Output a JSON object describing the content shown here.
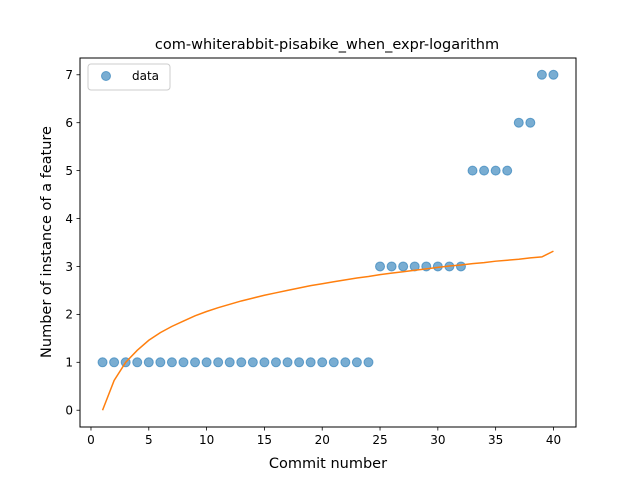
{
  "chart_data": {
    "type": "scatter",
    "title": "com-whiterabbit-pisabike_when_expr-logarithm",
    "xlabel": "Commit number",
    "ylabel": "Number of instance of a feature",
    "xlim": [
      -0.95,
      41.95
    ],
    "ylim": [
      -0.35,
      7.35
    ],
    "xticks": [
      0,
      5,
      10,
      15,
      20,
      25,
      30,
      35,
      40
    ],
    "yticks": [
      0,
      1,
      2,
      3,
      4,
      5,
      6,
      7
    ],
    "grid": false,
    "legend_position": "upper-left",
    "series": [
      {
        "name": "data",
        "kind": "scatter",
        "color": "#1f77b4",
        "x": [
          1,
          2,
          3,
          4,
          5,
          6,
          7,
          8,
          9,
          10,
          11,
          12,
          13,
          14,
          15,
          16,
          17,
          18,
          19,
          20,
          21,
          22,
          23,
          24,
          25,
          26,
          27,
          28,
          29,
          30,
          31,
          32,
          33,
          34,
          35,
          36,
          37,
          38,
          39,
          40
        ],
        "y": [
          1,
          1,
          1,
          1,
          1,
          1,
          1,
          1,
          1,
          1,
          1,
          1,
          1,
          1,
          1,
          1,
          1,
          1,
          1,
          1,
          1,
          1,
          1,
          1,
          3,
          3,
          3,
          3,
          3,
          3,
          3,
          3,
          5,
          5,
          5,
          5,
          6,
          6,
          7,
          7
        ]
      },
      {
        "kind": "fit-line",
        "color": "#ff7f0e",
        "x": [
          1,
          2,
          3,
          4,
          5,
          6,
          7,
          8,
          9,
          10,
          11,
          12,
          13,
          14,
          15,
          16,
          17,
          18,
          19,
          20,
          21,
          22,
          23,
          24,
          25,
          26,
          27,
          28,
          29,
          30,
          31,
          32,
          33,
          34,
          35,
          36,
          37,
          38,
          39,
          40
        ],
        "y": [
          0,
          0.62,
          1.0,
          1.25,
          1.46,
          1.62,
          1.75,
          1.86,
          1.97,
          2.06,
          2.14,
          2.21,
          2.28,
          2.34,
          2.4,
          2.45,
          2.5,
          2.55,
          2.6,
          2.64,
          2.68,
          2.72,
          2.76,
          2.79,
          2.83,
          2.86,
          2.89,
          2.92,
          2.95,
          2.98,
          3.01,
          3.03,
          3.06,
          3.08,
          3.11,
          3.13,
          3.15,
          3.18,
          3.2,
          3.32
        ]
      }
    ]
  }
}
